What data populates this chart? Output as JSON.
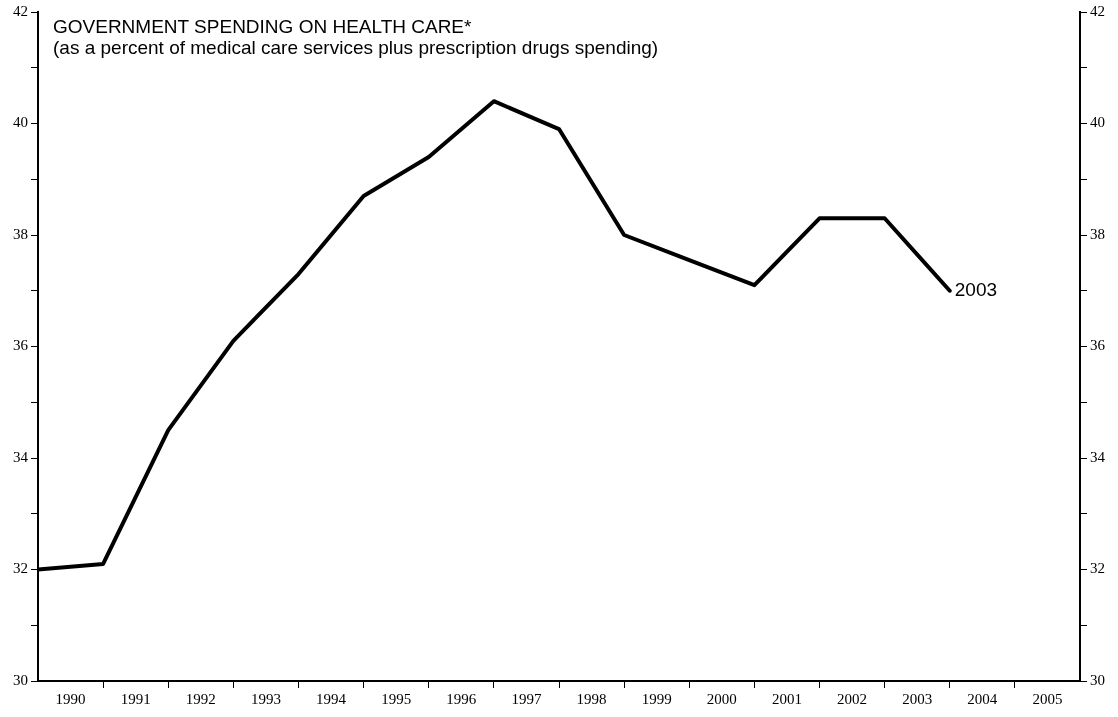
{
  "chart_data": {
    "type": "line",
    "title": "GOVERNMENT SPENDING ON HEALTH CARE*",
    "subtitle": "(as a percent of medical care services plus prescription drugs spending)",
    "x": [
      1990,
      1991,
      1992,
      1993,
      1994,
      1995,
      1996,
      1997,
      1998,
      1999,
      2000,
      2001,
      2002,
      2003,
      2004
    ],
    "series": [
      {
        "color": "#000000",
        "values": [
          32.0,
          32.1,
          34.5,
          36.1,
          37.3,
          38.7,
          39.4,
          40.4,
          39.9,
          38.0,
          37.55,
          37.1,
          38.3,
          38.3,
          37.0
        ]
      }
    ],
    "xlim": [
      1990,
      2006
    ],
    "xticks": [
      {
        "value": 1990.5,
        "label": "1990"
      },
      {
        "value": 1991,
        "label": null
      },
      {
        "value": 1991.5,
        "label": "1991"
      },
      {
        "value": 1992,
        "label": null
      },
      {
        "value": 1992.5,
        "label": "1992"
      },
      {
        "value": 1993,
        "label": null
      },
      {
        "value": 1993.5,
        "label": "1993"
      },
      {
        "value": 1994,
        "label": null
      },
      {
        "value": 1994.5,
        "label": "1994"
      },
      {
        "value": 1995,
        "label": null
      },
      {
        "value": 1995.5,
        "label": "1995"
      },
      {
        "value": 1996,
        "label": null
      },
      {
        "value": 1996.5,
        "label": "1996"
      },
      {
        "value": 1997,
        "label": null
      },
      {
        "value": 1997.5,
        "label": "1997"
      },
      {
        "value": 1998,
        "label": null
      },
      {
        "value": 1998.5,
        "label": "1998"
      },
      {
        "value": 1999,
        "label": null
      },
      {
        "value": 1999.5,
        "label": "1999"
      },
      {
        "value": 2000,
        "label": null
      },
      {
        "value": 2000.5,
        "label": "2000"
      },
      {
        "value": 2001,
        "label": null
      },
      {
        "value": 2001.5,
        "label": "2001"
      },
      {
        "value": 2002,
        "label": null
      },
      {
        "value": 2002.5,
        "label": "2002"
      },
      {
        "value": 2003,
        "label": null
      },
      {
        "value": 2003.5,
        "label": "2003"
      },
      {
        "value": 2004,
        "label": null
      },
      {
        "value": 2004.5,
        "label": "2004"
      },
      {
        "value": 2005,
        "label": null
      },
      {
        "value": 2005.5,
        "label": "2005"
      }
    ],
    "ylim": [
      30,
      42
    ],
    "yticks": [
      30,
      {
        "value": 31,
        "label": null
      },
      32,
      {
        "value": 33,
        "label": null
      },
      34,
      {
        "value": 35,
        "label": null
      },
      36,
      {
        "value": 37,
        "label": null
      },
      38,
      {
        "value": 39,
        "label": null
      },
      40,
      {
        "value": 41,
        "label": null
      },
      42
    ],
    "y2lim": [
      30,
      42
    ],
    "y2ticks": [
      30,
      {
        "value": 31,
        "label": null
      },
      32,
      {
        "value": 33,
        "label": null
      },
      34,
      {
        "value": 35,
        "label": null
      },
      36,
      {
        "value": 37,
        "label": null
      },
      38,
      {
        "value": 39,
        "label": null
      },
      40,
      {
        "value": 41,
        "label": null
      },
      42
    ],
    "annotations": [
      {
        "text": "2003",
        "x": 2004,
        "y": 37.0
      }
    ],
    "grid": false,
    "legend": false,
    "marker": "none",
    "line_style": "solid"
  }
}
